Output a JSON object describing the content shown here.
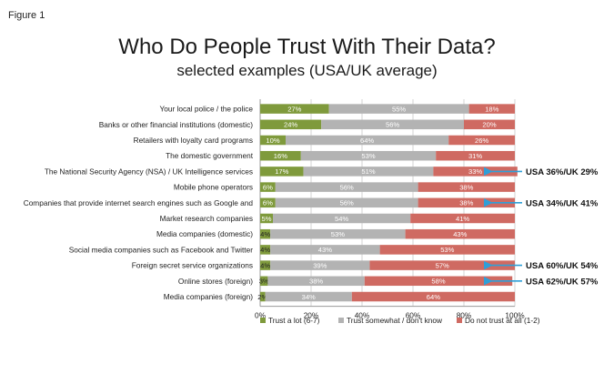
{
  "figure_label": "Figure 1",
  "chart_data": {
    "type": "bar",
    "orientation": "horizontal",
    "stacked": true,
    "title": "Who Do People Trust With Their Data?",
    "subtitle": "selected examples (USA/UK average)",
    "xlim": [
      0,
      100
    ],
    "x_ticks": [
      "0%",
      "20%",
      "40%",
      "60%",
      "80%",
      "100%"
    ],
    "grid": true,
    "legend_position": "bottom",
    "categories": [
      "Your local police / the police",
      "Banks or other financial institutions (domestic)",
      "Retailers with loyalty card programs",
      "The domestic government",
      "The National Security Agency (NSA) / UK Intelligence services",
      "Mobile phone operators",
      "Companies that provide internet search engines such as Google and",
      "Market research companies",
      "Media companies (domestic)",
      "Social media companies such as Facebook and Twitter",
      "Foreign secret service organizations",
      "Online stores (foreign)",
      "Media companies (foreign)"
    ],
    "series": [
      {
        "name": "Trust a lot (6-7)",
        "color": "#7f9a3c",
        "values": [
          27,
          24,
          10,
          16,
          17,
          6,
          6,
          5,
          4,
          4,
          4,
          3,
          2
        ],
        "labels": [
          "27%",
          "24%",
          "10%",
          "16%",
          "17%",
          "6%",
          "6%",
          "5%",
          "4%",
          "4%",
          "4%",
          "3%",
          "2%"
        ]
      },
      {
        "name": "Trust somewhat / don't know",
        "color": "#b3b3b3",
        "values": [
          55,
          56,
          64,
          53,
          51,
          56,
          56,
          54,
          53,
          43,
          39,
          38,
          34
        ],
        "labels": [
          "55%",
          "56%",
          "64%",
          "53%",
          "51%",
          "56%",
          "56%",
          "54%",
          "53%",
          "43%",
          "39%",
          "38%",
          "34%"
        ]
      },
      {
        "name": "Do not trust at all (1-2)",
        "color": "#cf6a62",
        "values": [
          18,
          20,
          26,
          31,
          33,
          38,
          38,
          41,
          43,
          53,
          57,
          58,
          64
        ],
        "labels": [
          "18%",
          "20%",
          "26%",
          "31%",
          "33%",
          "38%",
          "38%",
          "41%",
          "43%",
          "53%",
          "57%",
          "58%",
          "64%"
        ]
      }
    ],
    "callouts": [
      {
        "category_index": 4,
        "text": "USA 36%/UK 29%"
      },
      {
        "category_index": 6,
        "text": "USA 34%/UK 41%"
      },
      {
        "category_index": 10,
        "text": "USA 60%/UK 54%"
      },
      {
        "category_index": 11,
        "text": "USA 62%/UK 57%"
      }
    ],
    "callout_arrow_color": "#2f9fd8",
    "gridline_color": "#c8c8c8",
    "axis_color": "#9a9a9a"
  }
}
